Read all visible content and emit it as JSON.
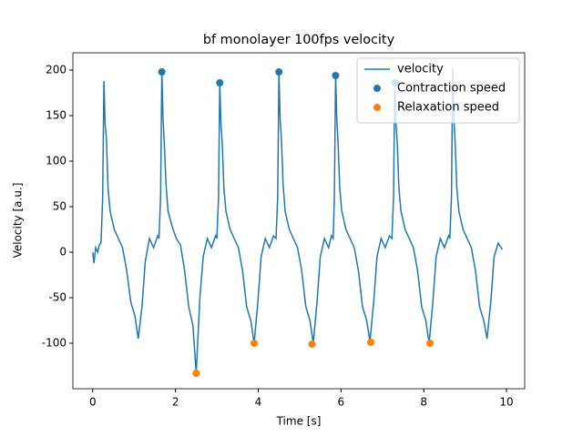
{
  "chart_data": {
    "type": "line",
    "title": "bf monolayer 100fps velocity",
    "xlabel": "Time [s]",
    "ylabel": "Velocity [a.u.]",
    "xlim": [
      -0.48,
      10.44
    ],
    "ylim": [
      -150,
      219
    ],
    "xticks": [
      0,
      2,
      4,
      6,
      8,
      10
    ],
    "yticks": [
      -100,
      -50,
      0,
      50,
      100,
      150,
      200
    ],
    "legend": "upper right",
    "series": [
      {
        "name": "velocity",
        "type": "line",
        "color": "#1f77b4",
        "x": [
          0.0,
          0.03,
          0.07,
          0.12,
          0.16,
          0.2,
          0.24,
          0.27,
          0.3,
          0.33,
          0.37,
          0.42,
          0.52,
          0.62,
          0.72,
          0.82,
          0.92,
          1.02,
          1.1,
          1.19,
          1.27,
          1.37,
          1.47,
          1.57,
          1.6,
          1.64,
          1.67,
          1.7,
          1.73,
          1.77,
          1.82,
          1.92,
          2.02,
          2.12,
          2.22,
          2.32,
          2.42,
          2.5,
          2.59,
          2.67,
          2.77,
          2.87,
          2.97,
          3.0,
          3.04,
          3.07,
          3.1,
          3.13,
          3.17,
          3.22,
          3.32,
          3.42,
          3.52,
          3.62,
          3.72,
          3.82,
          3.9,
          3.99,
          4.07,
          4.17,
          4.27,
          4.37,
          4.43,
          4.47,
          4.5,
          4.53,
          4.56,
          4.6,
          4.65,
          4.75,
          4.85,
          4.95,
          5.05,
          5.15,
          5.25,
          5.33,
          5.42,
          5.5,
          5.6,
          5.7,
          5.77,
          5.81,
          5.84,
          5.87,
          5.9,
          5.93,
          5.97,
          6.02,
          6.12,
          6.22,
          6.32,
          6.42,
          6.52,
          6.62,
          6.7,
          6.79,
          6.87,
          6.97,
          7.07,
          7.17,
          7.23,
          7.27,
          7.3,
          7.33,
          7.36,
          7.4,
          7.45,
          7.55,
          7.65,
          7.75,
          7.85,
          7.95,
          8.05,
          8.13,
          8.22,
          8.3,
          8.4,
          8.5,
          8.6,
          8.63,
          8.67,
          8.7,
          8.73,
          8.76,
          8.8,
          8.85,
          8.95,
          9.05,
          9.15,
          9.25,
          9.35,
          9.45,
          9.53,
          9.62,
          9.7,
          9.8,
          9.9
        ],
        "values": [
          0,
          -12,
          5,
          0,
          8,
          10,
          60,
          188,
          140,
          125,
          70,
          45,
          25,
          15,
          5,
          -20,
          -55,
          -70,
          -95,
          -60,
          -10,
          15,
          5,
          18,
          15,
          60,
          198,
          145,
          120,
          75,
          45,
          28,
          15,
          8,
          -20,
          -60,
          -80,
          -133,
          -50,
          -5,
          15,
          5,
          18,
          15,
          60,
          186,
          140,
          120,
          70,
          45,
          25,
          15,
          5,
          -20,
          -60,
          -75,
          -100,
          -55,
          -5,
          15,
          5,
          18,
          15,
          60,
          198,
          145,
          125,
          75,
          45,
          25,
          15,
          5,
          -20,
          -60,
          -75,
          -100,
          -55,
          -5,
          15,
          5,
          18,
          15,
          60,
          194,
          145,
          120,
          70,
          45,
          25,
          15,
          5,
          -20,
          -60,
          -75,
          -98,
          -55,
          -5,
          15,
          5,
          18,
          15,
          60,
          186,
          140,
          120,
          70,
          45,
          25,
          15,
          5,
          -20,
          -60,
          -75,
          -100,
          -55,
          -5,
          15,
          5,
          18,
          15,
          60,
          202,
          145,
          120,
          70,
          45,
          25,
          15,
          5,
          -20,
          -60,
          -75,
          -95,
          -55,
          -5,
          10,
          3
        ]
      },
      {
        "name": "Contraction speed",
        "type": "scatter",
        "color": "#1f77b4",
        "x": [
          1.67,
          3.07,
          4.5,
          5.87,
          7.3
        ],
        "values": [
          198,
          186,
          198,
          194,
          186
        ]
      },
      {
        "name": "Relaxation speed",
        "type": "scatter",
        "color": "#ff7f0e",
        "x": [
          2.5,
          3.9,
          5.3,
          6.72,
          8.15
        ],
        "values": [
          -133,
          -100,
          -101,
          -99,
          -100
        ]
      }
    ]
  }
}
